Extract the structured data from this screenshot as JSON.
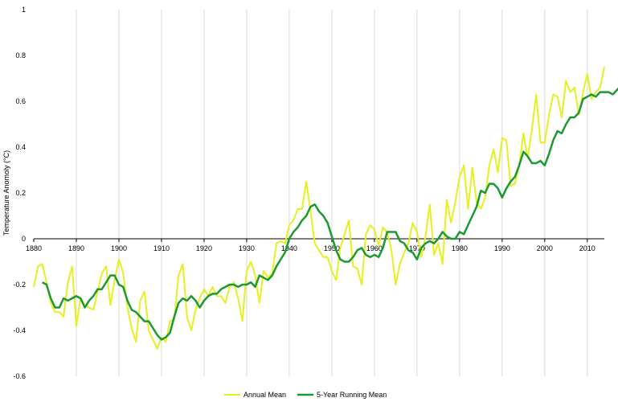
{
  "chart_data": {
    "type": "line",
    "title": "",
    "xlabel": "",
    "ylabel": "Temperature Anomoly (°C)",
    "xlim": [
      1880,
      2014
    ],
    "ylim": [
      -0.6,
      1.0
    ],
    "x_ticks": [
      "1880",
      "1890",
      "1900",
      "1910",
      "1920",
      "1930",
      "1940",
      "1950",
      "1960",
      "1970",
      "1980",
      "1990",
      "2000",
      "2010"
    ],
    "x_tick_values": [
      1880,
      1890,
      1900,
      1910,
      1920,
      1930,
      1940,
      1950,
      1960,
      1970,
      1980,
      1990,
      2000,
      2010
    ],
    "y_ticks": [
      "-0.6",
      "-0.4",
      "-0.2",
      "0",
      "0.2",
      "0.4",
      "0.6",
      "0.8",
      "1"
    ],
    "y_tick_values": [
      -0.6,
      -0.4,
      -0.2,
      0,
      0.2,
      0.4,
      0.6,
      0.8,
      1.0
    ],
    "grid": "vertical",
    "legend": "bottom",
    "series": [
      {
        "name": "Annual Mean",
        "color": "#e6f01e",
        "start_year": 1880,
        "values": [
          -0.21,
          -0.12,
          -0.11,
          -0.19,
          -0.28,
          -0.32,
          -0.32,
          -0.34,
          -0.19,
          -0.12,
          -0.38,
          -0.26,
          -0.29,
          -0.3,
          -0.31,
          -0.23,
          -0.15,
          -0.12,
          -0.29,
          -0.18,
          -0.09,
          -0.15,
          -0.3,
          -0.39,
          -0.45,
          -0.27,
          -0.23,
          -0.4,
          -0.44,
          -0.48,
          -0.43,
          -0.45,
          -0.36,
          -0.35,
          -0.16,
          -0.11,
          -0.34,
          -0.4,
          -0.31,
          -0.26,
          -0.22,
          -0.25,
          -0.21,
          -0.25,
          -0.25,
          -0.28,
          -0.21,
          -0.19,
          -0.26,
          -0.36,
          -0.14,
          -0.1,
          -0.16,
          -0.28,
          -0.14,
          -0.17,
          -0.15,
          -0.02,
          -0.01,
          -0.02,
          0.06,
          0.08,
          0.13,
          0.13,
          0.25,
          0.12,
          -0.02,
          -0.05,
          -0.08,
          -0.08,
          -0.14,
          -0.18,
          -0.04,
          0.02,
          0.08,
          -0.12,
          -0.13,
          -0.2,
          0.02,
          0.06,
          0.04,
          -0.03,
          0.05,
          0.03,
          -0.05,
          -0.2,
          -0.11,
          -0.06,
          -0.02,
          0.07,
          0.03,
          -0.08,
          0.01,
          0.15,
          -0.07,
          -0.02,
          -0.11,
          0.17,
          0.07,
          0.16,
          0.27,
          0.32,
          0.13,
          0.31,
          0.16,
          0.13,
          0.18,
          0.32,
          0.39,
          0.29,
          0.44,
          0.43,
          0.23,
          0.24,
          0.32,
          0.46,
          0.35,
          0.48,
          0.63,
          0.42,
          0.42,
          0.54,
          0.63,
          0.62,
          0.53,
          0.69,
          0.64,
          0.66,
          0.54,
          0.64,
          0.72,
          0.61,
          0.64,
          0.66,
          0.75
        ]
      },
      {
        "name": "5-Year Running Mean",
        "color": "#1a9a30",
        "start_year": 1882,
        "values": [
          -0.19,
          -0.2,
          -0.26,
          -0.3,
          -0.3,
          -0.26,
          -0.27,
          -0.26,
          -0.25,
          -0.26,
          -0.3,
          -0.27,
          -0.25,
          -0.22,
          -0.22,
          -0.19,
          -0.16,
          -0.16,
          -0.2,
          -0.21,
          -0.27,
          -0.31,
          -0.32,
          -0.34,
          -0.36,
          -0.36,
          -0.39,
          -0.42,
          -0.44,
          -0.43,
          -0.41,
          -0.34,
          -0.28,
          -0.26,
          -0.27,
          -0.25,
          -0.27,
          -0.3,
          -0.27,
          -0.25,
          -0.24,
          -0.24,
          -0.22,
          -0.21,
          -0.2,
          -0.2,
          -0.21,
          -0.2,
          -0.2,
          -0.19,
          -0.21,
          -0.16,
          -0.17,
          -0.18,
          -0.16,
          -0.12,
          -0.09,
          -0.06,
          0.0,
          0.03,
          0.05,
          0.08,
          0.1,
          0.14,
          0.15,
          0.12,
          0.1,
          0.07,
          0.01,
          -0.05,
          -0.09,
          -0.1,
          -0.1,
          -0.08,
          -0.05,
          -0.04,
          -0.07,
          -0.08,
          -0.07,
          -0.08,
          -0.04,
          0.03,
          0.03,
          0.03,
          -0.01,
          -0.02,
          -0.05,
          -0.06,
          -0.09,
          -0.04,
          -0.02,
          -0.01,
          -0.02,
          0.0,
          0.03,
          0.01,
          0.0,
          0.0,
          0.03,
          0.02,
          0.06,
          0.1,
          0.14,
          0.21,
          0.2,
          0.24,
          0.24,
          0.22,
          0.18,
          0.22,
          0.25,
          0.27,
          0.32,
          0.38,
          0.36,
          0.33,
          0.33,
          0.34,
          0.32,
          0.37,
          0.43,
          0.47,
          0.46,
          0.5,
          0.53,
          0.53,
          0.55,
          0.61,
          0.62,
          0.63,
          0.62,
          0.64,
          0.64,
          0.64,
          0.63,
          0.65,
          0.67
        ]
      }
    ]
  }
}
